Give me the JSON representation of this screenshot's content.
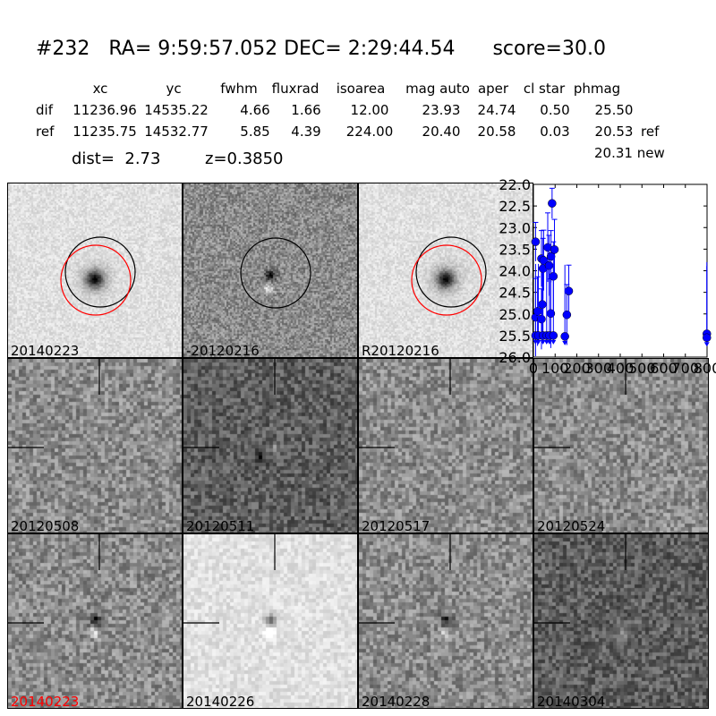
{
  "header": {
    "title": "#232   RA= 9:59:57.052 DEC= 2:29:44.54      score=30.0",
    "columns": [
      "xc",
      "yc",
      "fwhm",
      "fluxrad",
      "isoarea",
      "mag auto",
      "aper",
      "cl star",
      "phmag"
    ],
    "rows": [
      {
        "name": "dif",
        "values": [
          "11236.96",
          "14535.22",
          "4.66",
          "1.66",
          "12.00",
          "23.93",
          "24.74",
          "0.50",
          "25.50"
        ],
        "suffix": ""
      },
      {
        "name": "ref",
        "values": [
          "11235.75",
          "14532.77",
          "5.85",
          "4.39",
          "224.00",
          "20.40",
          "20.58",
          "0.03",
          "20.53"
        ],
        "suffix": "ref"
      }
    ],
    "new_mag": "20.31 new",
    "dist": "dist=  2.73",
    "z": "z=0.3850"
  },
  "cells": [
    {
      "label": "20140223",
      "tone": "light",
      "red": false
    },
    {
      "label": "-20120216",
      "tone": "mid",
      "red": false
    },
    {
      "label": "R20120216",
      "tone": "light",
      "red": false
    },
    {
      "label": "20120508",
      "tone": "mid",
      "red": false
    },
    {
      "label": "20120511",
      "tone": "dark",
      "red": false
    },
    {
      "label": "20120517",
      "tone": "mid",
      "red": false
    },
    {
      "label": "20120524",
      "tone": "mid",
      "red": false
    },
    {
      "label": "20140223",
      "tone": "mid",
      "red": true
    },
    {
      "label": "20140226",
      "tone": "light",
      "red": false
    },
    {
      "label": "20140228",
      "tone": "mid",
      "red": false
    },
    {
      "label": "20140304",
      "tone": "dark",
      "red": false
    }
  ],
  "chart_data": {
    "type": "scatter",
    "xlim": [
      0,
      800
    ],
    "ylim": [
      26.0,
      22.0
    ],
    "y_inverted": true,
    "xticks": [
      "0",
      "100",
      "200",
      "300",
      "400",
      "500",
      "600",
      "700",
      "800"
    ],
    "yticks": [
      "22.0",
      "22.5",
      "23.0",
      "23.5",
      "24.0",
      "24.5",
      "25.0",
      "25.5",
      "26.0"
    ],
    "color": "#0000ff",
    "points": [
      {
        "x": 10,
        "y": 23.33,
        "yerr": 0.45
      },
      {
        "x": 10,
        "y": 25.08,
        "yerr": 0.9
      },
      {
        "x": 19,
        "y": 24.94,
        "yerr": 0.8
      },
      {
        "x": 37,
        "y": 25.12,
        "yerr": 0.7
      },
      {
        "x": 37,
        "y": 23.72,
        "yerr": 0.65
      },
      {
        "x": 41,
        "y": 24.78,
        "yerr": 0.8
      },
      {
        "x": 44,
        "y": 23.95,
        "yerr": 0.7
      },
      {
        "x": 47,
        "y": 23.76,
        "yerr": 0.7
      },
      {
        "x": 66,
        "y": 23.46,
        "yerr": 0.8
      },
      {
        "x": 72,
        "y": 23.88,
        "yerr": 0.7
      },
      {
        "x": 80,
        "y": 24.99,
        "yerr": 0.8
      },
      {
        "x": 81,
        "y": 23.67,
        "yerr": 0.6
      },
      {
        "x": 86,
        "y": 22.44,
        "yerr": 0.35
      },
      {
        "x": 92,
        "y": 24.13,
        "yerr": 0.8
      },
      {
        "x": 97,
        "y": 23.51,
        "yerr": 0.7
      },
      {
        "x": 154,
        "y": 25.02,
        "yerr": 0.7
      },
      {
        "x": 163,
        "y": 24.47,
        "yerr": 0.6
      }
    ],
    "upper_limits": [
      {
        "x": 10,
        "y": 25.5
      },
      {
        "x": 23,
        "y": 25.5
      },
      {
        "x": 44,
        "y": 25.5
      },
      {
        "x": 61,
        "y": 25.5
      },
      {
        "x": 74,
        "y": 25.5
      },
      {
        "x": 92,
        "y": 25.5
      },
      {
        "x": 145,
        "y": 25.52
      },
      {
        "x": 799,
        "y": 25.46
      },
      {
        "x": 799,
        "y": 25.55
      }
    ]
  }
}
